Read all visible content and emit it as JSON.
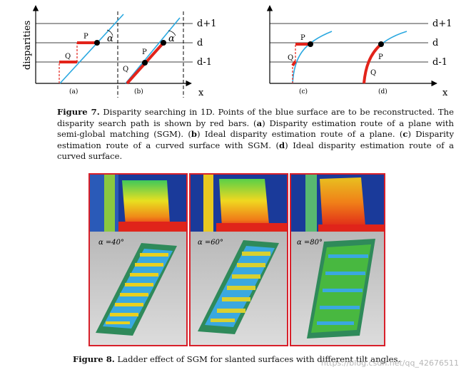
{
  "figure7": {
    "left": {
      "ylabel": "disparities",
      "xlabel": "x",
      "levels": [
        "d+1",
        "d",
        "d-1"
      ],
      "point_labels": {
        "P1": "P",
        "Q1": "Q",
        "P2": "P",
        "Q2": "Q"
      },
      "sub_a": "(a)",
      "sub_b": "(b)",
      "alpha": "α"
    },
    "right": {
      "xlabel": "x",
      "levels": [
        "d+1",
        "d",
        "d-1"
      ],
      "point_labels": {
        "P1": "P",
        "Q1": "Q",
        "P2": "P",
        "Q2": "Q"
      },
      "sub_c": "(c)",
      "sub_d": "(d)"
    },
    "colors": {
      "surface": "#2aa8e0",
      "path": "#e2231a",
      "point": "#000000"
    }
  },
  "caption7": {
    "label": "Figure 7.",
    "text": " Disparity searching in 1D. Points of the blue surface are to be reconstructed. The disparity search path is shown by red bars. (",
    "a": "a",
    "t_a": ") Disparity estimation route of a plane with semi-global matching (SGM). (",
    "b": "b",
    "t_b": ") Ideal disparity estimation route of a plane. (",
    "c": "c",
    "t_c": ") Disparity estimation route of a curved surface with SGM. (",
    "d": "d",
    "t_d": ") Ideal disparity estimation route of a curved surface."
  },
  "figure8": {
    "panels": [
      {
        "angle_label": "α =40°"
      },
      {
        "angle_label": "α =60°"
      },
      {
        "angle_label": "α =80°"
      }
    ],
    "colors": {
      "border": "#d8202a",
      "ground": "#c9c9c9"
    }
  },
  "caption8": {
    "label": "Figure 8.",
    "text": " Ladder effect of SGM for slanted surfaces with different tilt angles."
  },
  "watermark": "https://blog.csdn.net/qq_42676511"
}
